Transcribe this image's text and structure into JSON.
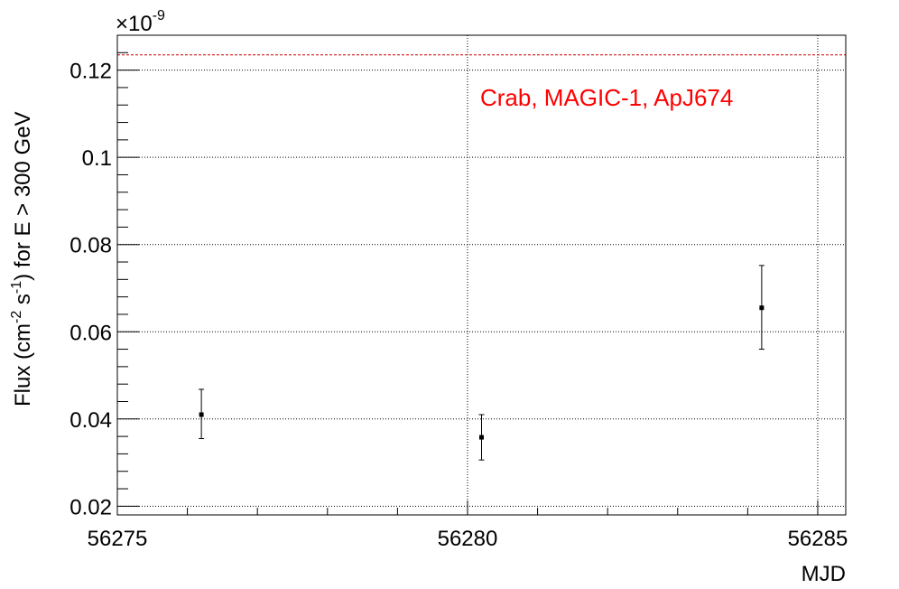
{
  "chart_data": {
    "type": "scatter",
    "title": "",
    "xlabel": "MJD",
    "ylabel": {
      "parts": [
        "Flux (cm",
        "-2",
        " s",
        "-1",
        ") for E > 300 GeV"
      ]
    },
    "y_multiplier": {
      "base": "×10",
      "exponent": "-9"
    },
    "xlim": [
      56275,
      56285.4
    ],
    "ylim": [
      0.018,
      0.128
    ],
    "x_ticks": [
      56275,
      56280,
      56285
    ],
    "x_tick_labels": [
      "56275",
      "56280",
      "56285"
    ],
    "y_ticks": [
      0.02,
      0.04,
      0.06,
      0.08,
      0.1,
      0.12
    ],
    "y_tick_labels": [
      "0.02",
      "0.04",
      "0.06",
      "0.08",
      "0.1",
      "0.12"
    ],
    "grid": true,
    "points": [
      {
        "x": 56276.2,
        "y": 0.041,
        "y_err_low": 0.0055,
        "y_err_high": 0.0058
      },
      {
        "x": 56280.2,
        "y": 0.0358,
        "y_err_low": 0.0052,
        "y_err_high": 0.0052
      },
      {
        "x": 56284.2,
        "y": 0.0655,
        "y_err_low": 0.0095,
        "y_err_high": 0.0097
      }
    ],
    "reference_line": {
      "y": 0.1235,
      "color": "#cc0000"
    },
    "annotation": {
      "text": "Crab, MAGIC-1, ApJ674",
      "color": "#ff0000"
    }
  }
}
